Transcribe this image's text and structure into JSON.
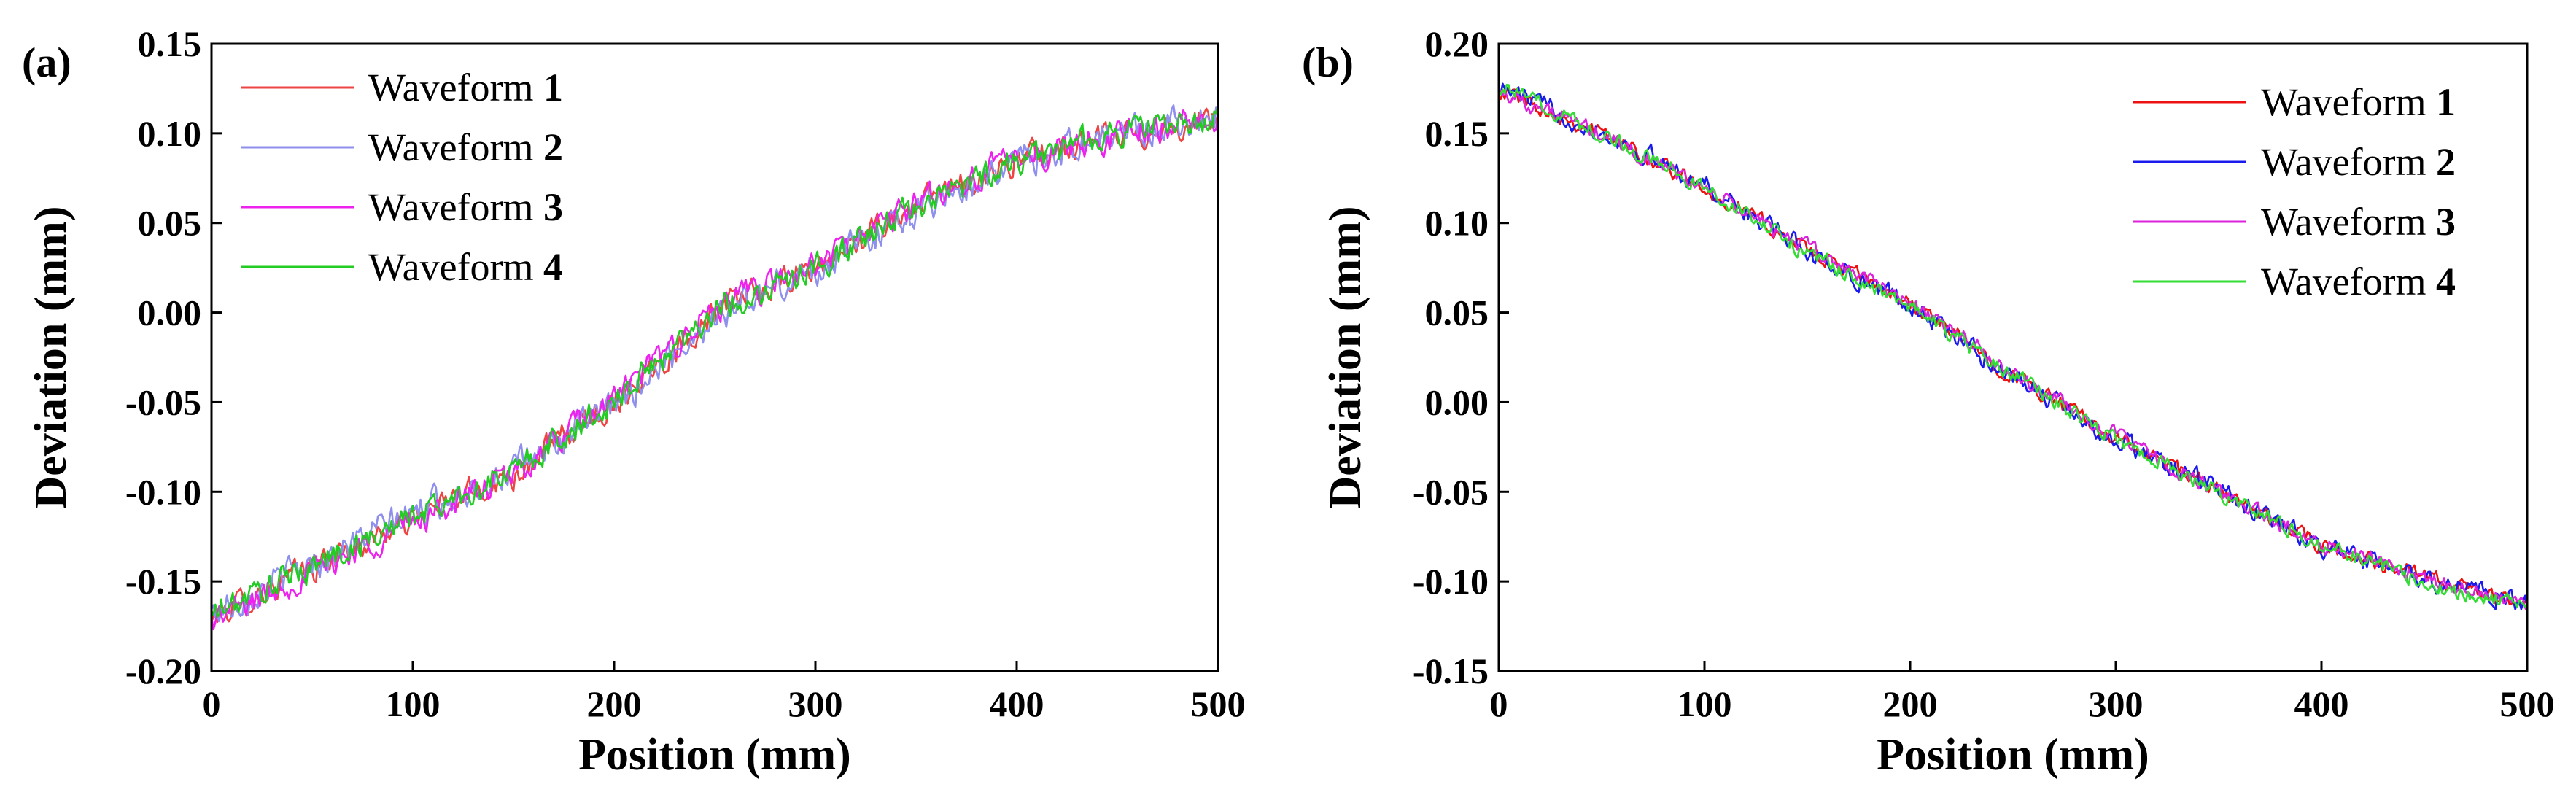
{
  "chart_data": [
    {
      "type": "line",
      "panel_label": "(a)",
      "xlabel": "Position (mm)",
      "ylabel": "Deviation  (mm)",
      "xlim": [
        0,
        500
      ],
      "ylim": [
        -0.2,
        0.15
      ],
      "xticks": [
        "0",
        "100",
        "200",
        "300",
        "400",
        "500"
      ],
      "yticks": [
        "-0.20",
        "-0.15",
        "-0.10",
        "-0.05",
        "0.00",
        "0.05",
        "0.10",
        "0.15"
      ],
      "legend_position": "top-left",
      "trend_x": [
        0,
        100,
        150,
        200,
        250,
        300,
        350,
        400,
        450,
        500
      ],
      "series": [
        {
          "name": "Waveform",
          "number": "1",
          "color": "#ee4444",
          "trend_y": [
            -0.17,
            -0.115,
            -0.09,
            -0.05,
            0.0,
            0.025,
            0.06,
            0.085,
            0.098,
            0.108
          ],
          "noise": 0.007
        },
        {
          "name": "Waveform",
          "number": "2",
          "color": "#8f8fee",
          "trend_y": [
            -0.168,
            -0.112,
            -0.088,
            -0.052,
            -0.002,
            0.024,
            0.058,
            0.084,
            0.1,
            0.11
          ],
          "noise": 0.008
        },
        {
          "name": "Waveform",
          "number": "3",
          "color": "#ee22ee",
          "trend_y": [
            -0.172,
            -0.117,
            -0.091,
            -0.048,
            0.002,
            0.026,
            0.061,
            0.086,
            0.099,
            0.109
          ],
          "noise": 0.007
        },
        {
          "name": "Waveform",
          "number": "4",
          "color": "#22cc22",
          "trend_y": [
            -0.169,
            -0.114,
            -0.089,
            -0.049,
            0.001,
            0.025,
            0.059,
            0.085,
            0.101,
            0.108
          ],
          "noise": 0.007
        }
      ]
    },
    {
      "type": "line",
      "panel_label": "(b)",
      "xlabel": "Position (mm)",
      "ylabel": "Deviation  (mm)",
      "xlim": [
        0,
        500
      ],
      "ylim": [
        -0.15,
        0.2
      ],
      "xticks": [
        "0",
        "100",
        "200",
        "300",
        "400",
        "500"
      ],
      "yticks": [
        "-0.15",
        "-0.10",
        "-0.05",
        "0.00",
        "0.05",
        "0.10",
        "0.15",
        "0.20"
      ],
      "legend_position": "top-right",
      "trend_x": [
        0,
        50,
        100,
        150,
        200,
        250,
        300,
        350,
        400,
        450,
        500
      ],
      "series": [
        {
          "name": "Waveform",
          "number": "1",
          "color": "#ee1111",
          "trend_y": [
            0.175,
            0.15,
            0.12,
            0.085,
            0.055,
            0.015,
            -0.02,
            -0.05,
            -0.08,
            -0.098,
            -0.113
          ],
          "noise": 0.004
        },
        {
          "name": "Waveform",
          "number": "2",
          "color": "#1a1aee",
          "trend_y": [
            0.176,
            0.151,
            0.121,
            0.084,
            0.054,
            0.014,
            -0.021,
            -0.049,
            -0.081,
            -0.099,
            -0.112
          ],
          "noise": 0.005
        },
        {
          "name": "Waveform",
          "number": "3",
          "color": "#dd22dd",
          "trend_y": [
            0.174,
            0.149,
            0.119,
            0.086,
            0.056,
            0.016,
            -0.019,
            -0.051,
            -0.079,
            -0.097,
            -0.114
          ],
          "noise": 0.004
        },
        {
          "name": "Waveform",
          "number": "4",
          "color": "#33dd33",
          "trend_y": [
            0.177,
            0.15,
            0.12,
            0.083,
            0.053,
            0.015,
            -0.02,
            -0.05,
            -0.08,
            -0.1,
            -0.115
          ],
          "noise": 0.004
        }
      ]
    }
  ]
}
